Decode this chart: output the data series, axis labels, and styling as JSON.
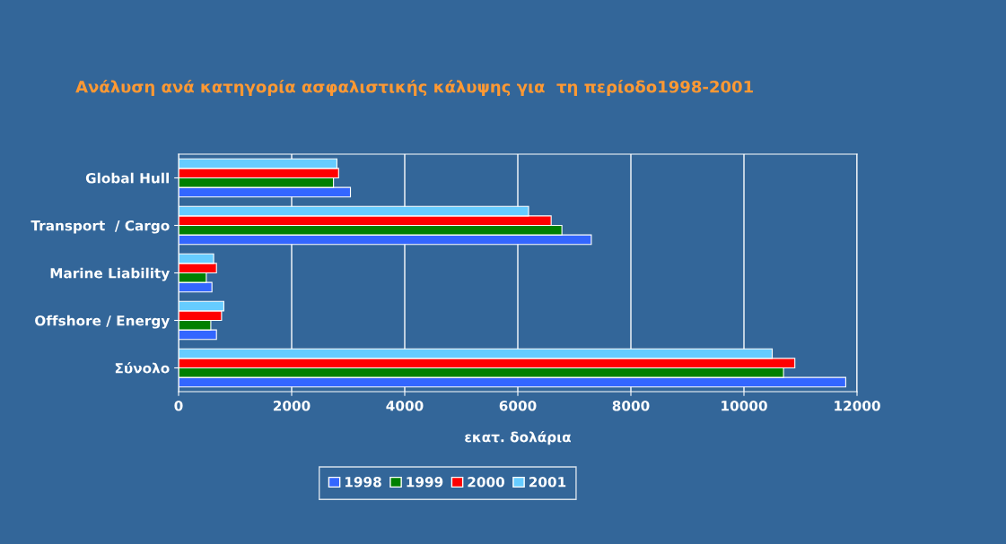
{
  "chart_data": {
    "type": "bar",
    "orientation": "horizontal",
    "title": "Ανάλυση ανά κατηγορία ασφαλιστικής κάλυψης για  τη περίοδο1998-2001",
    "xlabel": "εκατ. δολάρια",
    "categories": [
      "Global Hull",
      "Transport  / Cargo",
      "Marine Liability",
      "Offshore / Energy",
      "Σύνολο"
    ],
    "series": [
      {
        "name": "1998",
        "color": "#3366ff",
        "values": [
          3040,
          7300,
          590,
          670,
          11800
        ]
      },
      {
        "name": "1999",
        "color": "#008000",
        "values": [
          2740,
          6780,
          490,
          570,
          10700
        ]
      },
      {
        "name": "2000",
        "color": "#ff0000",
        "values": [
          2830,
          6590,
          670,
          760,
          10900
        ]
      },
      {
        "name": "2001",
        "color": "#66ccff",
        "values": [
          2800,
          6190,
          620,
          800,
          10500
        ]
      }
    ],
    "xlim": [
      0,
      12000
    ],
    "xticks": [
      0,
      2000,
      4000,
      6000,
      8000,
      10000,
      12000
    ],
    "grid": "x",
    "legend": "bottom"
  }
}
